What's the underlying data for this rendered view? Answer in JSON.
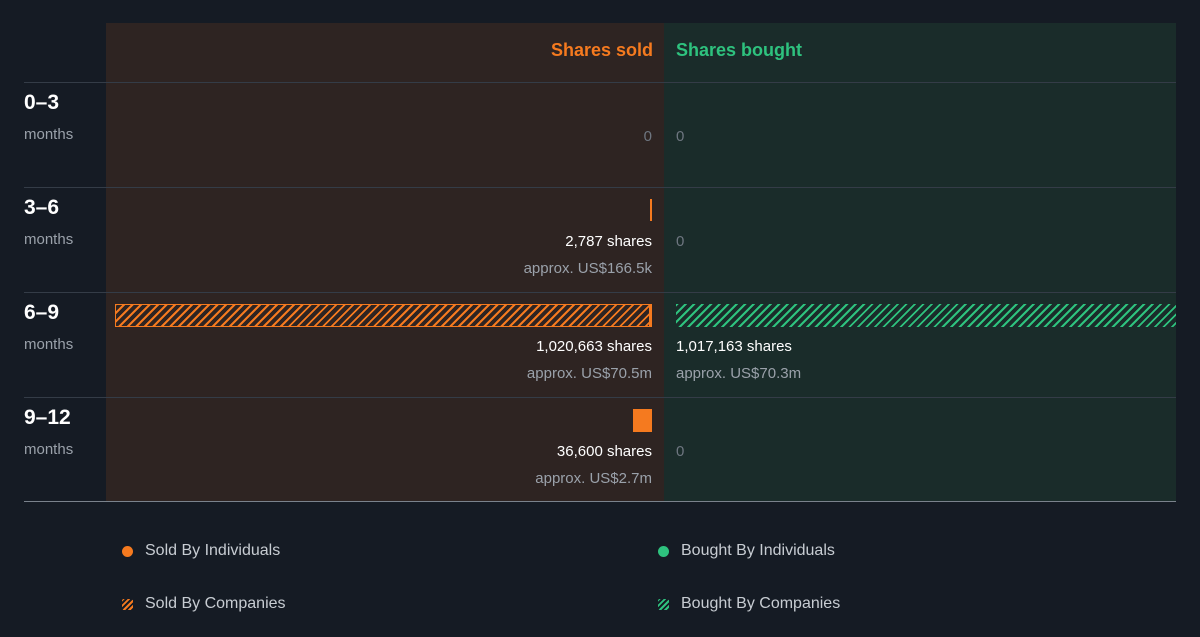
{
  "colors": {
    "sold": "#f57a1f",
    "bought": "#2ec27e",
    "sold_bg": "#2e2422",
    "bought_bg": "#1a2c2a"
  },
  "chart_data": {
    "type": "bar",
    "headers": {
      "sold": "Shares sold",
      "bought": "Shares bought"
    },
    "rows": [
      {
        "period": "0–3",
        "unit": "months",
        "sold": {
          "zero_text": "0",
          "segments": []
        },
        "bought": {
          "zero_text": "0",
          "segments": []
        }
      },
      {
        "period": "3–6",
        "unit": "months",
        "sold": {
          "shares_text": "2,787 shares",
          "approx_text": "approx. US$166.5k",
          "segments": [
            {
              "kind": "individuals",
              "shares": 2787
            }
          ]
        },
        "bought": {
          "zero_text": "0",
          "segments": []
        }
      },
      {
        "period": "6–9",
        "unit": "months",
        "sold": {
          "shares_text": "1,020,663 shares",
          "approx_text": "approx. US$70.5m",
          "segments": [
            {
              "kind": "individuals",
              "shares": 2787
            },
            {
              "kind": "companies",
              "shares": 1017876
            }
          ]
        },
        "bought": {
          "shares_text": "1,017,163 shares",
          "approx_text": "approx. US$70.3m",
          "segments": [
            {
              "kind": "companies",
              "shares": 1017163
            }
          ]
        }
      },
      {
        "period": "9–12",
        "unit": "months",
        "sold": {
          "shares_text": "36,600 shares",
          "approx_text": "approx. US$2.7m",
          "segments": [
            {
              "kind": "individuals",
              "shares": 36600
            }
          ]
        },
        "bought": {
          "zero_text": "0",
          "segments": []
        }
      }
    ],
    "max_shares": 1020663,
    "legend": [
      {
        "label": "Sold By Individuals",
        "icon": "orange-dot-icon"
      },
      {
        "label": "Bought By Individuals",
        "icon": "green-dot-icon"
      },
      {
        "label": "Sold By Companies",
        "icon": "orange-hatch-icon"
      },
      {
        "label": "Bought By Companies",
        "icon": "green-hatch-icon"
      }
    ]
  }
}
